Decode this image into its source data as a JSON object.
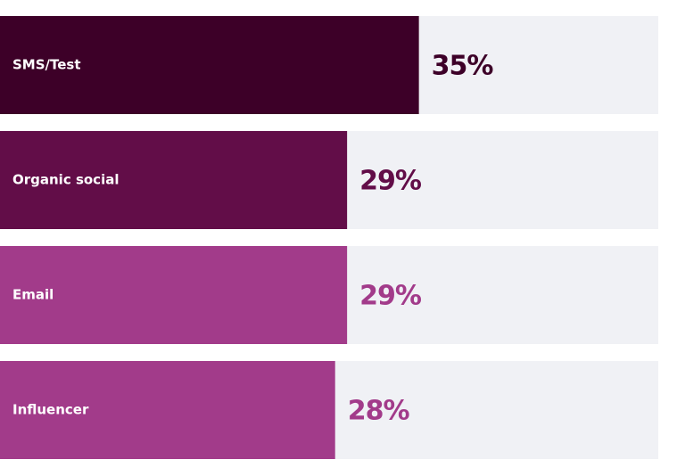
{
  "chart_data": {
    "type": "bar",
    "categories": [
      "SMS/Test",
      "Organic social",
      "Email",
      "Influencer"
    ],
    "values": [
      35,
      29,
      29,
      28
    ],
    "value_labels": [
      "35%",
      "29%",
      "29%",
      "28%"
    ],
    "colors": [
      "#3d0028",
      "#620d48",
      "#a23b8a",
      "#a23b8a"
    ],
    "track_color": "#f0f1f5",
    "xlim": [
      0,
      55
    ]
  }
}
